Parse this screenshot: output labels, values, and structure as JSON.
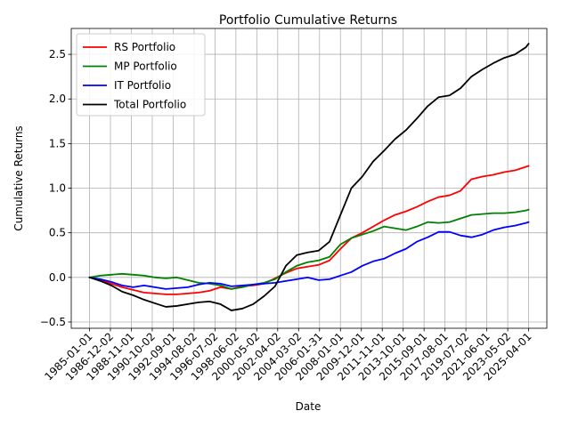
{
  "chart_data": {
    "type": "line",
    "title": "Portfolio Cumulative Returns",
    "xlabel": "Date",
    "ylabel": "Cumulative Returns",
    "grid": true,
    "legend_position": "top-left",
    "ylim": [
      -0.57,
      2.79
    ],
    "xlim": [
      "1983-05-01",
      "2026-12-01"
    ],
    "x_ticks": [
      "1985-01-01",
      "1986-12-02",
      "1988-11-01",
      "1990-10-02",
      "1992-09-01",
      "1994-08-02",
      "1996-07-02",
      "1998-06-02",
      "2000-05-02",
      "2002-04-02",
      "2004-03-02",
      "2006-01-31",
      "2008-01-01",
      "2009-12-01",
      "2011-11-01",
      "2013-10-01",
      "2015-09-01",
      "2017-08-01",
      "2019-07-02",
      "2021-06-01",
      "2023-05-02",
      "2025-04-01"
    ],
    "y_ticks": [
      "−0.5",
      "0.0",
      "0.5",
      "1.0",
      "1.5",
      "2.0",
      "2.5"
    ],
    "y_tick_values": [
      -0.5,
      0.0,
      0.5,
      1.0,
      1.5,
      2.0,
      2.5
    ],
    "x": [
      "1985-01-01",
      "1986-01-01",
      "1987-01-01",
      "1988-01-01",
      "1989-01-01",
      "1990-01-01",
      "1991-01-01",
      "1992-01-01",
      "1993-01-01",
      "1994-01-01",
      "1995-01-01",
      "1996-01-01",
      "1997-01-01",
      "1998-01-01",
      "1999-01-01",
      "2000-01-01",
      "2001-01-01",
      "2002-01-01",
      "2003-01-01",
      "2004-01-01",
      "2005-01-01",
      "2006-01-01",
      "2007-01-01",
      "2008-01-01",
      "2009-01-01",
      "2010-01-01",
      "2011-01-01",
      "2012-01-01",
      "2013-01-01",
      "2014-01-01",
      "2015-01-01",
      "2016-01-01",
      "2017-01-01",
      "2018-01-01",
      "2019-01-01",
      "2020-01-01",
      "2021-01-01",
      "2022-01-01",
      "2023-01-01",
      "2024-01-01",
      "2025-01-01",
      "2025-04-01"
    ],
    "series": [
      {
        "name": "RS Portfolio",
        "color": "#ff0000",
        "values": [
          0.0,
          -0.03,
          -0.07,
          -0.11,
          -0.14,
          -0.17,
          -0.18,
          -0.19,
          -0.19,
          -0.18,
          -0.17,
          -0.15,
          -0.11,
          -0.13,
          -0.1,
          -0.09,
          -0.07,
          -0.01,
          0.05,
          0.1,
          0.12,
          0.14,
          0.19,
          0.32,
          0.44,
          0.5,
          0.57,
          0.64,
          0.7,
          0.74,
          0.79,
          0.85,
          0.9,
          0.92,
          0.97,
          1.1,
          1.13,
          1.15,
          1.18,
          1.2,
          1.24,
          1.25
        ]
      },
      {
        "name": "MP Portfolio",
        "color": "#008000",
        "values": [
          0.0,
          0.02,
          0.03,
          0.04,
          0.03,
          0.02,
          0.0,
          -0.01,
          0.0,
          -0.03,
          -0.06,
          -0.07,
          -0.09,
          -0.13,
          -0.11,
          -0.08,
          -0.06,
          -0.02,
          0.06,
          0.13,
          0.17,
          0.19,
          0.23,
          0.37,
          0.44,
          0.48,
          0.52,
          0.57,
          0.55,
          0.53,
          0.57,
          0.62,
          0.61,
          0.62,
          0.66,
          0.7,
          0.71,
          0.72,
          0.72,
          0.73,
          0.75,
          0.76
        ]
      },
      {
        "name": "IT Portfolio",
        "color": "#0000ff",
        "values": [
          0.0,
          -0.02,
          -0.05,
          -0.09,
          -0.11,
          -0.09,
          -0.11,
          -0.13,
          -0.12,
          -0.11,
          -0.08,
          -0.06,
          -0.07,
          -0.1,
          -0.09,
          -0.08,
          -0.07,
          -0.06,
          -0.04,
          -0.02,
          0.0,
          -0.03,
          -0.02,
          0.02,
          0.06,
          0.13,
          0.18,
          0.21,
          0.27,
          0.32,
          0.4,
          0.45,
          0.51,
          0.51,
          0.47,
          0.45,
          0.48,
          0.53,
          0.56,
          0.58,
          0.61,
          0.62
        ]
      },
      {
        "name": "Total Portfolio",
        "color": "#000000",
        "values": [
          0.0,
          -0.04,
          -0.09,
          -0.16,
          -0.2,
          -0.25,
          -0.29,
          -0.33,
          -0.32,
          -0.3,
          -0.28,
          -0.27,
          -0.3,
          -0.37,
          -0.35,
          -0.3,
          -0.21,
          -0.1,
          0.13,
          0.25,
          0.28,
          0.3,
          0.4,
          0.7,
          1.0,
          1.13,
          1.3,
          1.42,
          1.55,
          1.65,
          1.78,
          1.92,
          2.02,
          2.04,
          2.12,
          2.25,
          2.33,
          2.4,
          2.46,
          2.5,
          2.58,
          2.62
        ]
      }
    ]
  }
}
